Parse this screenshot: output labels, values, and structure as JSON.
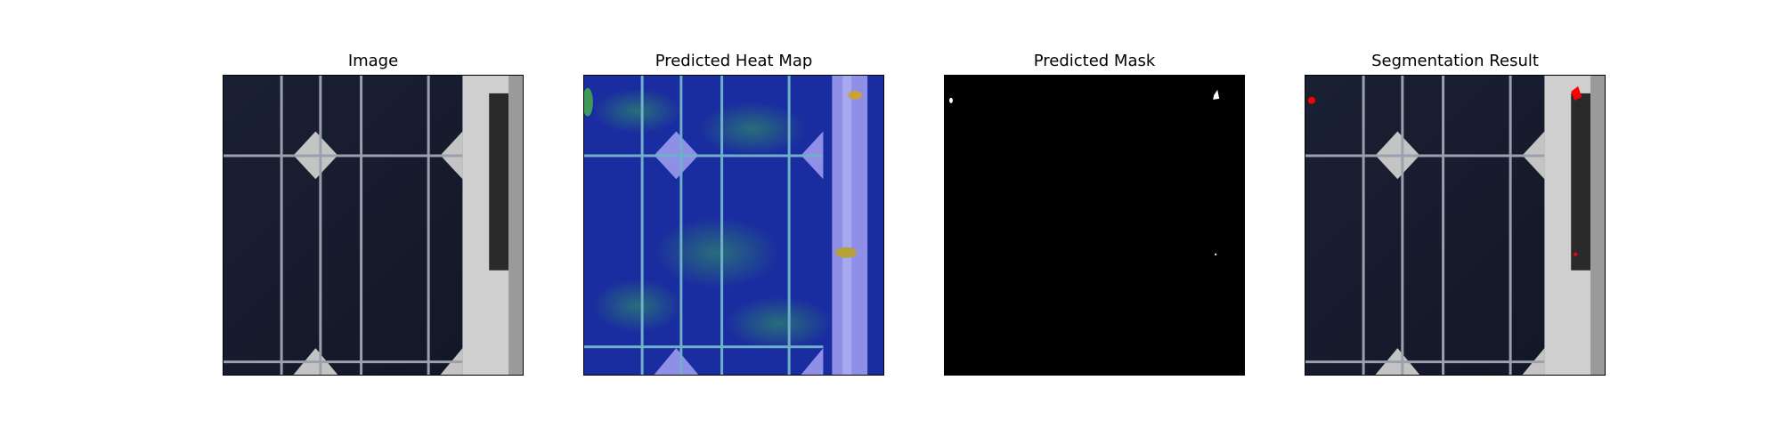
{
  "figure": {
    "panels": [
      {
        "id": "image",
        "title": "Image"
      },
      {
        "id": "heatmap",
        "title": "Predicted Heat Map"
      },
      {
        "id": "mask",
        "title": "Predicted Mask"
      },
      {
        "id": "segmentation",
        "title": "Segmentation Result"
      }
    ],
    "colors": {
      "cell": "#161b2b",
      "gap": "#b9b9b9",
      "heat_base": "#1a2ca8",
      "overlay_red": "#ff0000",
      "mask_bg": "#000000",
      "mask_fg": "#ffffff"
    }
  }
}
